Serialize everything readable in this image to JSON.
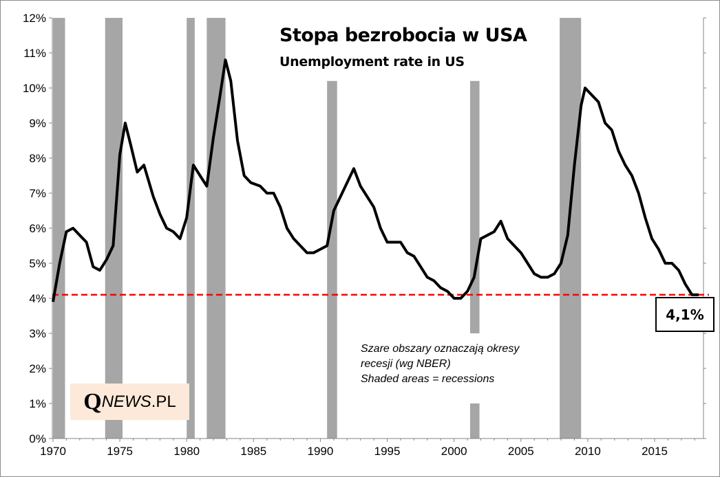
{
  "chart_data": {
    "type": "line",
    "title": "Stopa bezrobocia w USA",
    "subtitle": "Unemployment rate in US",
    "xlabel": "",
    "ylabel": "",
    "xlim": [
      1970,
      2018.6
    ],
    "ylim": [
      0,
      12
    ],
    "x_ticks": [
      1970,
      1975,
      1980,
      1985,
      1990,
      1995,
      2000,
      2005,
      2010,
      2015
    ],
    "x_tick_labels": [
      "1970",
      "1975",
      "1980",
      "1985",
      "1990",
      "1995",
      "2000",
      "2005",
      "2010",
      "2015"
    ],
    "y_ticks": [
      0,
      1,
      2,
      3,
      4,
      5,
      6,
      7,
      8,
      9,
      10,
      11,
      12
    ],
    "y_tick_labels": [
      "0%",
      "1%",
      "2%",
      "3%",
      "4%",
      "5%",
      "6%",
      "7%",
      "8%",
      "9%",
      "10%",
      "11%",
      "12%"
    ],
    "grid": false,
    "series": [
      {
        "name": "Unemployment rate",
        "color": "#000000",
        "x": [
          1970.0,
          1970.5,
          1971.0,
          1971.5,
          1972.0,
          1972.5,
          1973.0,
          1973.5,
          1974.0,
          1974.5,
          1975.0,
          1975.4,
          1975.8,
          1976.3,
          1976.8,
          1977.5,
          1978.0,
          1978.5,
          1979.0,
          1979.5,
          1980.0,
          1980.5,
          1981.0,
          1981.5,
          1982.0,
          1982.5,
          1982.9,
          1983.3,
          1983.8,
          1984.3,
          1984.8,
          1985.5,
          1986.0,
          1986.5,
          1987.0,
          1987.5,
          1988.0,
          1988.5,
          1989.0,
          1989.5,
          1990.0,
          1990.5,
          1991.0,
          1991.5,
          1992.0,
          1992.5,
          1993.0,
          1993.5,
          1994.0,
          1994.5,
          1995.0,
          1995.5,
          1996.0,
          1996.5,
          1997.0,
          1997.5,
          1998.0,
          1998.5,
          1999.0,
          1999.5,
          2000.0,
          2000.5,
          2001.0,
          2001.5,
          2002.0,
          2002.5,
          2003.0,
          2003.5,
          2004.0,
          2004.5,
          2005.0,
          2005.5,
          2006.0,
          2006.5,
          2007.0,
          2007.5,
          2008.0,
          2008.5,
          2009.0,
          2009.5,
          2009.8,
          2010.3,
          2010.8,
          2011.3,
          2011.8,
          2012.3,
          2012.8,
          2013.3,
          2013.8,
          2014.3,
          2014.8,
          2015.3,
          2015.8,
          2016.3,
          2016.8,
          2017.3,
          2017.8,
          2018.3
        ],
        "y": [
          3.9,
          5.0,
          5.9,
          6.0,
          5.8,
          5.6,
          4.9,
          4.8,
          5.1,
          5.5,
          8.1,
          9.0,
          8.4,
          7.6,
          7.8,
          6.9,
          6.4,
          6.0,
          5.9,
          5.7,
          6.3,
          7.8,
          7.5,
          7.2,
          8.6,
          9.8,
          10.8,
          10.2,
          8.5,
          7.5,
          7.3,
          7.2,
          7.0,
          7.0,
          6.6,
          6.0,
          5.7,
          5.5,
          5.3,
          5.3,
          5.4,
          5.5,
          6.5,
          6.9,
          7.3,
          7.7,
          7.2,
          6.9,
          6.6,
          6.0,
          5.6,
          5.6,
          5.6,
          5.3,
          5.2,
          4.9,
          4.6,
          4.5,
          4.3,
          4.2,
          4.0,
          4.0,
          4.2,
          4.6,
          5.7,
          5.8,
          5.9,
          6.2,
          5.7,
          5.5,
          5.3,
          5.0,
          4.7,
          4.6,
          4.6,
          4.7,
          5.0,
          5.8,
          7.8,
          9.5,
          10.0,
          9.8,
          9.6,
          9.0,
          8.8,
          8.2,
          7.8,
          7.5,
          7.0,
          6.3,
          5.7,
          5.4,
          5.0,
          5.0,
          4.8,
          4.4,
          4.1,
          4.1
        ]
      }
    ],
    "recessions": [
      {
        "start": 1970.0,
        "end": 1970.9,
        "top": 12
      },
      {
        "start": 1973.9,
        "end": 1975.2,
        "top": 12
      },
      {
        "start": 1980.0,
        "end": 1980.6,
        "top": 12
      },
      {
        "start": 1981.5,
        "end": 1982.9,
        "top": 12
      },
      {
        "start": 1990.5,
        "end": 1991.25,
        "top": 10.2
      },
      {
        "start": 2001.2,
        "end": 2001.9,
        "top": 10.2,
        "gap": [
          1,
          3
        ]
      },
      {
        "start": 2007.9,
        "end": 2009.5,
        "top": 12
      }
    ],
    "recession_color": "#a6a6a6",
    "reference_line": {
      "value": 4.1,
      "color": "#ff0000",
      "style": "dashed",
      "label": "4,1%"
    },
    "annotation": [
      "Szare obszary oznaczają okresy",
      "recesji (wg NBER)",
      "Shaded areas = recessions"
    ],
    "source_logo": {
      "q": "Q",
      "news": "NEWS",
      "pl": ".PL"
    }
  }
}
